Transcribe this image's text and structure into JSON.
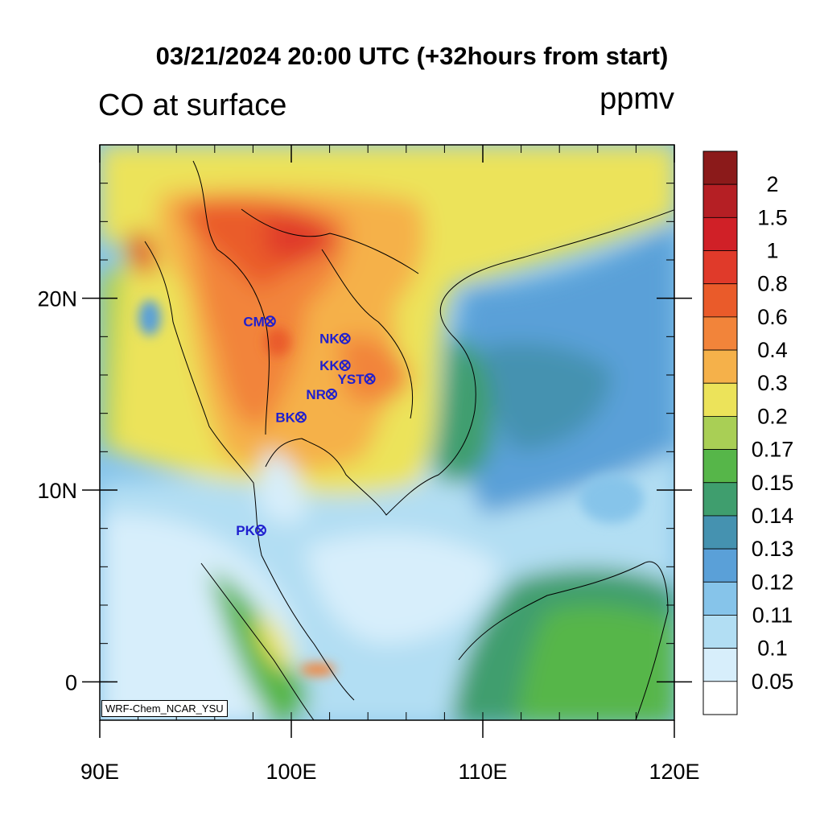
{
  "header": {
    "title": "03/21/2024 20:00 UTC (+32hours from start)",
    "subtitle": "CO at surface",
    "unit": "ppmv"
  },
  "map": {
    "lon_range": [
      90,
      120
    ],
    "lat_range": [
      -2,
      28
    ],
    "x_ticks": [
      {
        "lon": 90,
        "label": "90E"
      },
      {
        "lon": 100,
        "label": "100E"
      },
      {
        "lon": 110,
        "label": "110E"
      },
      {
        "lon": 120,
        "label": "120E"
      }
    ],
    "y_ticks": [
      {
        "lat": 0,
        "label": "0"
      },
      {
        "lat": 10,
        "label": "10N"
      },
      {
        "lat": 20,
        "label": "20N"
      }
    ],
    "credit": "WRF-Chem_NCAR_YSU",
    "stations": [
      {
        "code": "CM",
        "lon": 98.9,
        "lat": 18.8
      },
      {
        "code": "NK",
        "lon": 102.8,
        "lat": 17.9
      },
      {
        "code": "KK",
        "lon": 102.8,
        "lat": 16.5
      },
      {
        "code": "YST",
        "lon": 104.1,
        "lat": 15.8
      },
      {
        "code": "NR",
        "lon": 102.1,
        "lat": 15.0
      },
      {
        "code": "BK",
        "lon": 100.5,
        "lat": 13.8
      },
      {
        "code": "PK",
        "lon": 98.4,
        "lat": 7.9
      }
    ]
  },
  "colorbar": {
    "levels": [
      "2",
      "1.5",
      "1",
      "0.8",
      "0.6",
      "0.4",
      "0.3",
      "0.2",
      "0.17",
      "0.15",
      "0.14",
      "0.13",
      "0.12",
      "0.11",
      "0.1",
      "0.05"
    ],
    "colors": [
      "#8b1a1a",
      "#b51f24",
      "#d02027",
      "#e03a2a",
      "#ea5b2a",
      "#f2843a",
      "#f5b14a",
      "#ece35a",
      "#a9cf55",
      "#56b649",
      "#3f9e6e",
      "#4592b0",
      "#5aa0d8",
      "#86c4ea",
      "#b2def3",
      "#d7eefb",
      "#ffffff"
    ]
  }
}
